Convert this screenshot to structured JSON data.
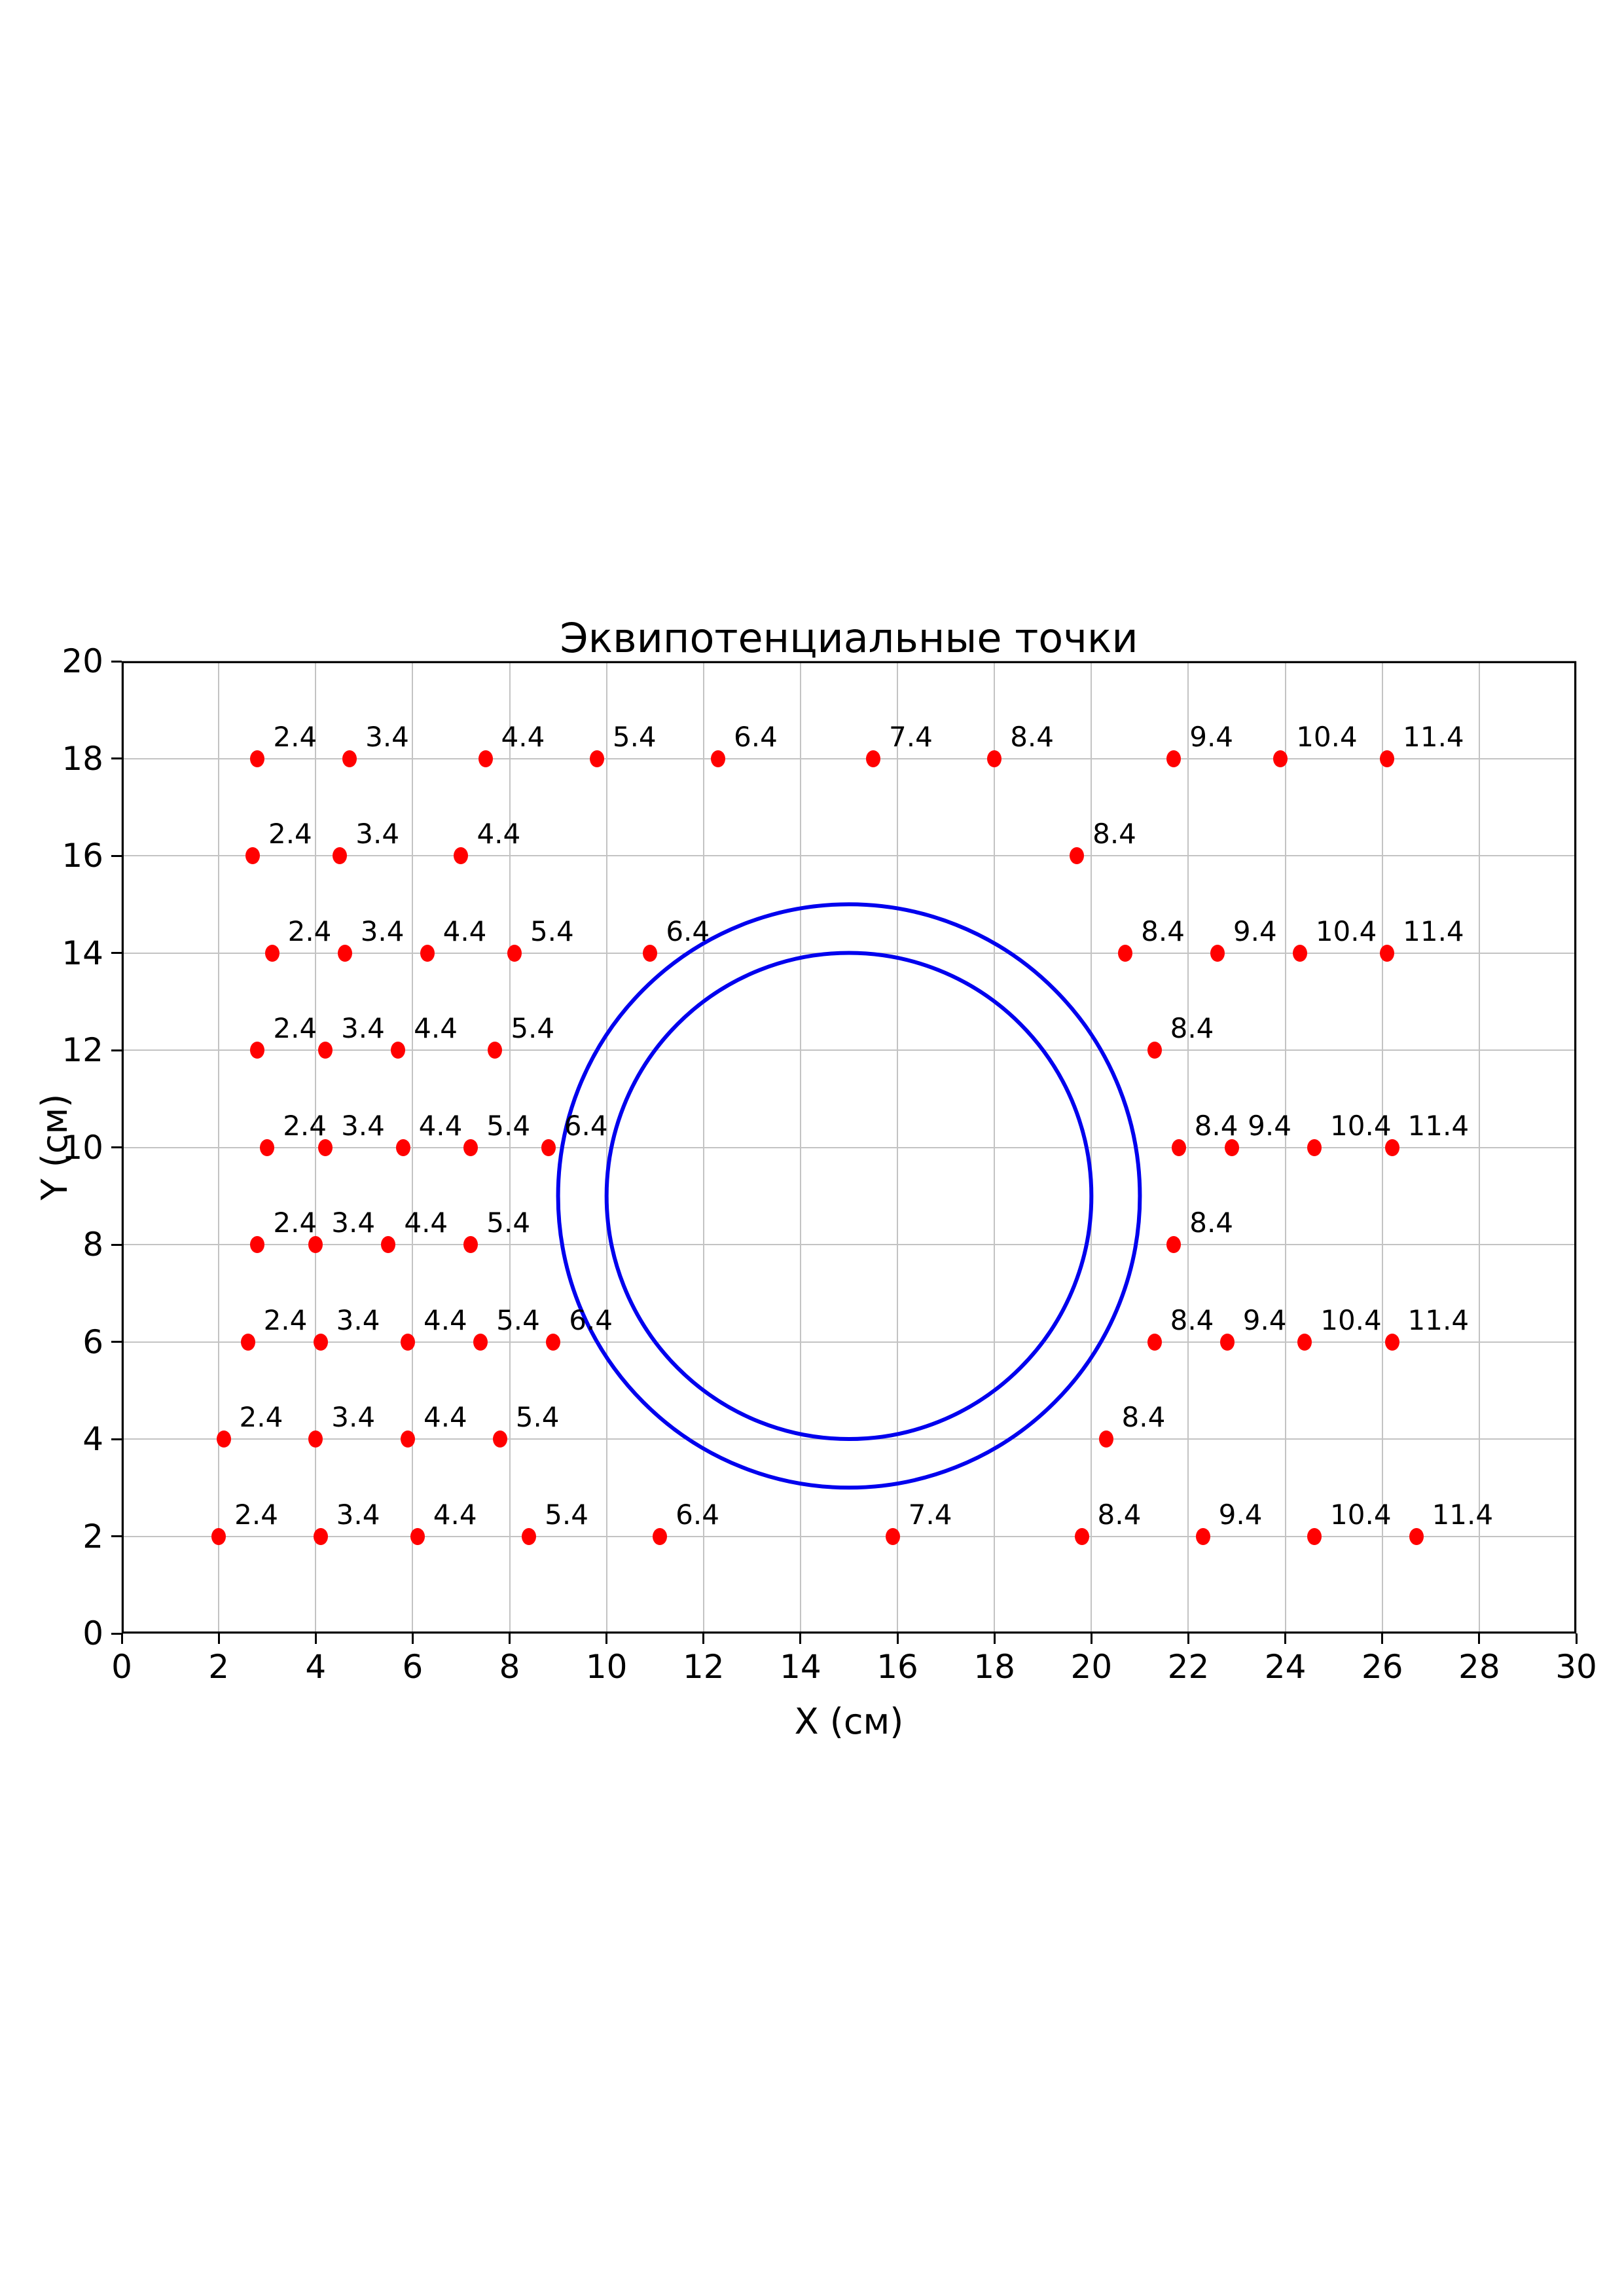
{
  "title": "Эквипотенциальные точки",
  "chart_data": {
    "type": "scatter",
    "title": "Эквипотенциальные точки",
    "xlabel": "X (см)",
    "ylabel": "Y (см)",
    "xlim": [
      0,
      30
    ],
    "ylim": [
      0,
      20
    ],
    "x_ticks": [
      0,
      2,
      4,
      6,
      8,
      10,
      12,
      14,
      16,
      18,
      20,
      22,
      24,
      26,
      28,
      30
    ],
    "y_ticks": [
      0,
      2,
      4,
      6,
      8,
      10,
      12,
      14,
      16,
      18,
      20
    ],
    "grid": true,
    "legend": "none",
    "colors": {
      "point": "#ff0000",
      "circle": "#0000ee",
      "grid": "#c3c3c3",
      "axis": "#000000"
    },
    "circles": [
      {
        "cx": 15,
        "cy": 9,
        "r": 5
      },
      {
        "cx": 15,
        "cy": 9,
        "r": 6
      }
    ],
    "points": [
      {
        "x": 2.8,
        "y": 18,
        "label": "2.4"
      },
      {
        "x": 4.7,
        "y": 18,
        "label": "3.4"
      },
      {
        "x": 7.5,
        "y": 18,
        "label": "4.4"
      },
      {
        "x": 9.8,
        "y": 18,
        "label": "5.4"
      },
      {
        "x": 12.3,
        "y": 18,
        "label": "6.4"
      },
      {
        "x": 15.5,
        "y": 18,
        "label": "7.4"
      },
      {
        "x": 18.0,
        "y": 18,
        "label": "8.4"
      },
      {
        "x": 21.7,
        "y": 18,
        "label": "9.4"
      },
      {
        "x": 23.9,
        "y": 18,
        "label": "10.4"
      },
      {
        "x": 26.1,
        "y": 18,
        "label": "11.4"
      },
      {
        "x": 2.7,
        "y": 16,
        "label": "2.4"
      },
      {
        "x": 4.5,
        "y": 16,
        "label": "3.4"
      },
      {
        "x": 7.0,
        "y": 16,
        "label": "4.4"
      },
      {
        "x": 19.7,
        "y": 16,
        "label": "8.4"
      },
      {
        "x": 3.1,
        "y": 14,
        "label": "2.4"
      },
      {
        "x": 4.6,
        "y": 14,
        "label": "3.4"
      },
      {
        "x": 6.3,
        "y": 14,
        "label": "4.4"
      },
      {
        "x": 8.1,
        "y": 14,
        "label": "5.4"
      },
      {
        "x": 10.9,
        "y": 14,
        "label": "6.4"
      },
      {
        "x": 20.7,
        "y": 14,
        "label": "8.4"
      },
      {
        "x": 22.6,
        "y": 14,
        "label": "9.4"
      },
      {
        "x": 24.3,
        "y": 14,
        "label": "10.4"
      },
      {
        "x": 26.1,
        "y": 14,
        "label": "11.4"
      },
      {
        "x": 2.8,
        "y": 12,
        "label": "2.4"
      },
      {
        "x": 4.2,
        "y": 12,
        "label": "3.4"
      },
      {
        "x": 5.7,
        "y": 12,
        "label": "4.4"
      },
      {
        "x": 7.7,
        "y": 12,
        "label": "5.4"
      },
      {
        "x": 21.3,
        "y": 12,
        "label": "8.4"
      },
      {
        "x": 3.0,
        "y": 10,
        "label": "2.4"
      },
      {
        "x": 4.2,
        "y": 10,
        "label": "3.4"
      },
      {
        "x": 5.8,
        "y": 10,
        "label": "4.4"
      },
      {
        "x": 7.2,
        "y": 10,
        "label": "5.4"
      },
      {
        "x": 8.8,
        "y": 10,
        "label": "6.4"
      },
      {
        "x": 21.8,
        "y": 10,
        "label": "8.4"
      },
      {
        "x": 22.9,
        "y": 10,
        "label": "9.4"
      },
      {
        "x": 24.6,
        "y": 10,
        "label": "10.4"
      },
      {
        "x": 26.2,
        "y": 10,
        "label": "11.4"
      },
      {
        "x": 2.8,
        "y": 8,
        "label": "2.4"
      },
      {
        "x": 4.0,
        "y": 8,
        "label": "3.4"
      },
      {
        "x": 5.5,
        "y": 8,
        "label": "4.4"
      },
      {
        "x": 7.2,
        "y": 8,
        "label": "5.4"
      },
      {
        "x": 21.7,
        "y": 8,
        "label": "8.4"
      },
      {
        "x": 2.6,
        "y": 6,
        "label": "2.4"
      },
      {
        "x": 4.1,
        "y": 6,
        "label": "3.4"
      },
      {
        "x": 5.9,
        "y": 6,
        "label": "4.4"
      },
      {
        "x": 7.4,
        "y": 6,
        "label": "5.4"
      },
      {
        "x": 8.9,
        "y": 6,
        "label": "6.4"
      },
      {
        "x": 21.3,
        "y": 6,
        "label": "8.4"
      },
      {
        "x": 22.8,
        "y": 6,
        "label": "9.4"
      },
      {
        "x": 24.4,
        "y": 6,
        "label": "10.4"
      },
      {
        "x": 26.2,
        "y": 6,
        "label": "11.4"
      },
      {
        "x": 2.1,
        "y": 4,
        "label": "2.4"
      },
      {
        "x": 4.0,
        "y": 4,
        "label": "3.4"
      },
      {
        "x": 5.9,
        "y": 4,
        "label": "4.4"
      },
      {
        "x": 7.8,
        "y": 4,
        "label": "5.4"
      },
      {
        "x": 20.3,
        "y": 4,
        "label": "8.4"
      },
      {
        "x": 2.0,
        "y": 2,
        "label": "2.4"
      },
      {
        "x": 4.1,
        "y": 2,
        "label": "3.4"
      },
      {
        "x": 6.1,
        "y": 2,
        "label": "4.4"
      },
      {
        "x": 8.4,
        "y": 2,
        "label": "5.4"
      },
      {
        "x": 11.1,
        "y": 2,
        "label": "6.4"
      },
      {
        "x": 15.9,
        "y": 2,
        "label": "7.4"
      },
      {
        "x": 19.8,
        "y": 2,
        "label": "8.4"
      },
      {
        "x": 22.3,
        "y": 2,
        "label": "9.4"
      },
      {
        "x": 24.6,
        "y": 2,
        "label": "10.4"
      },
      {
        "x": 26.7,
        "y": 2,
        "label": "11.4"
      }
    ]
  }
}
